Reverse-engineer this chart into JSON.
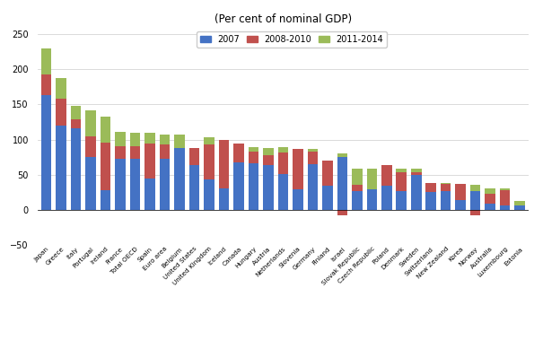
{
  "title": "(Per cent of nominal GDP)",
  "categories": [
    "Japan",
    "Greece",
    "Italy",
    "Portugal",
    "Ireland",
    "France",
    "Total OECD",
    "Spain",
    "Euro area",
    "Belgium",
    "United States",
    "United Kingdom",
    "Iceland",
    "Canada",
    "Hungary",
    "Austria",
    "Netherlands",
    "Slovenia",
    "Germany",
    "Finland",
    "Israel",
    "Slovak Republic",
    "Czech Republic",
    "Poland",
    "Denmark",
    "Sweden",
    "Switzerland",
    "New Zealand",
    "Korea",
    "Norway",
    "Australia",
    "Luxembourg",
    "Estonia"
  ],
  "val_2007": [
    163,
    120,
    116,
    75,
    28,
    73,
    73,
    44,
    73,
    88,
    63,
    43,
    30,
    67,
    66,
    63,
    51,
    29,
    65,
    34,
    75,
    27,
    29,
    34,
    27,
    49,
    25,
    26,
    14,
    27,
    9,
    6,
    6
  ],
  "val_2008_2010": [
    30,
    38,
    13,
    30,
    68,
    17,
    18,
    50,
    20,
    0,
    25,
    50,
    70,
    27,
    17,
    15,
    30,
    57,
    18,
    36,
    -8,
    8,
    0,
    30,
    27,
    5,
    13,
    11,
    23,
    -8,
    14,
    22,
    0
  ],
  "val_2011_2014": [
    37,
    30,
    19,
    37,
    36,
    21,
    19,
    16,
    14,
    19,
    0,
    10,
    0,
    0,
    6,
    10,
    8,
    0,
    3,
    0,
    5,
    24,
    30,
    0,
    4,
    4,
    0,
    1,
    0,
    8,
    8,
    3,
    6
  ],
  "color_2007": "#4472C4",
  "color_2008_2010": "#C0504D",
  "color_2011_2014": "#9BBB59",
  "ylim": [
    -50,
    260
  ],
  "yticks": [
    -50,
    0,
    50,
    100,
    150,
    200,
    250
  ],
  "legend_labels": [
    "2007",
    "2008-2010",
    "2011-2014"
  ],
  "background_color": "#FFFFFF"
}
